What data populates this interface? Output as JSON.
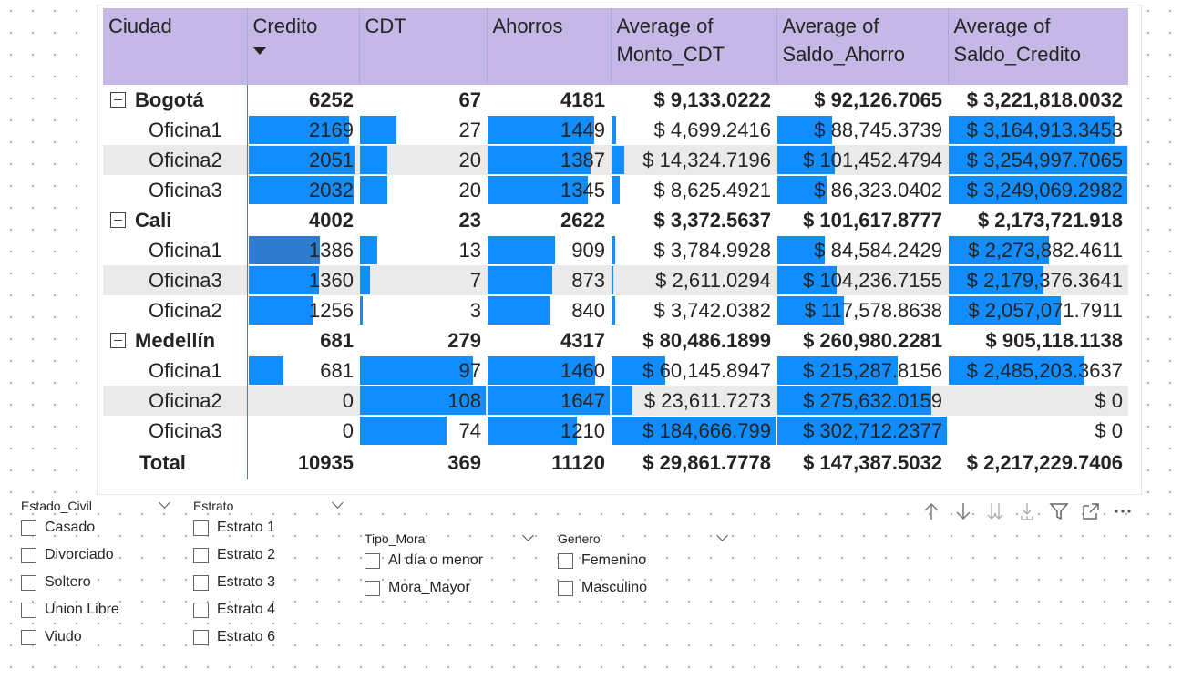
{
  "matrix": {
    "headers": {
      "ciudad": "Ciudad",
      "credito": "Credito",
      "cdt": "CDT",
      "ahorros": "Ahorros",
      "monto_cdt": "Average of Monto_CDT",
      "saldo_ahorro": "Average of Saldo_Ahorro",
      "saldo_credito": "Average of Saldo_Credito"
    },
    "sort_column": "Credito",
    "bar_color": "#118dff",
    "header_color": "#c5b8e6",
    "groups": [
      {
        "city": "Bogotá",
        "credito": "6252",
        "cdt": "67",
        "ahorros": "4181",
        "monto_cdt": "$ 9,133.0222",
        "saldo_ahorro": "$ 92,126.7065",
        "saldo_credito": "$ 3,221,818.0032",
        "offices": [
          {
            "name": "Oficina1",
            "credito": "2169",
            "cdt": "27",
            "ahorros": "1449",
            "monto_cdt": "$ 4,699.2416",
            "saldo_ahorro": "$ 88,745.3739",
            "saldo_credito": "$ 3,164,913.3453",
            "levels": {
              "credito": 0.92,
              "cdt": 0.29,
              "ahorros": 0.87,
              "monto_cdt": 0.03,
              "saldo_ahorro": 0.32,
              "saldo_credito": 0.93
            }
          },
          {
            "name": "Oficina2",
            "credito": "2051",
            "cdt": "20",
            "ahorros": "1387",
            "monto_cdt": "$ 14,324.7196",
            "saldo_ahorro": "$ 101,452.4794",
            "saldo_credito": "$ 3,254,997.7065",
            "levels": {
              "credito": 0.97,
              "cdt": 0.22,
              "ahorros": 0.84,
              "monto_cdt": 0.08,
              "saldo_ahorro": 0.34,
              "saldo_credito": 1.0
            }
          },
          {
            "name": "Oficina3",
            "credito": "2032",
            "cdt": "20",
            "ahorros": "1345",
            "monto_cdt": "$ 8,625.4921",
            "saldo_ahorro": "$ 86,323.0402",
            "saldo_credito": "$ 3,249,069.2982",
            "levels": {
              "credito": 0.96,
              "cdt": 0.22,
              "ahorros": 0.82,
              "monto_cdt": 0.05,
              "saldo_ahorro": 0.29,
              "saldo_credito": 1.0
            }
          }
        ]
      },
      {
        "city": "Cali",
        "credito": "4002",
        "cdt": "23",
        "ahorros": "2622",
        "monto_cdt": "$ 3,372.5637",
        "saldo_ahorro": "$ 101,617.8777",
        "saldo_credito": "$ 2,173,721.918",
        "offices": [
          {
            "name": "Oficina1",
            "credito": "1386",
            "cdt": "13",
            "ahorros": "909",
            "monto_cdt": "$ 3,784.9928",
            "saldo_ahorro": "$ 84,584.2429",
            "saldo_credito": "$ 2,273,882.4611",
            "selected": true,
            "levels": {
              "credito": 0.65,
              "cdt": 0.14,
              "ahorros": 0.55,
              "monto_cdt": 0.02,
              "saldo_ahorro": 0.28,
              "saldo_credito": 0.56
            }
          },
          {
            "name": "Oficina3",
            "credito": "1360",
            "cdt": "7",
            "ahorros": "873",
            "monto_cdt": "$ 2,611.0294",
            "saldo_ahorro": "$ 104,236.7155",
            "saldo_credito": "$ 2,179,376.3641",
            "levels": {
              "credito": 0.64,
              "cdt": 0.08,
              "ahorros": 0.53,
              "monto_cdt": 0.01,
              "saldo_ahorro": 0.35,
              "saldo_credito": 0.53
            }
          },
          {
            "name": "Oficina2",
            "credito": "1256",
            "cdt": "3",
            "ahorros": "840",
            "monto_cdt": "$ 3,742.0382",
            "saldo_ahorro": "$ 117,578.8638",
            "saldo_credito": "$ 2,057,071.7911",
            "levels": {
              "credito": 0.59,
              "cdt": 0.02,
              "ahorros": 0.51,
              "monto_cdt": 0.02,
              "saldo_ahorro": 0.39,
              "saldo_credito": 0.63
            }
          }
        ]
      },
      {
        "city": "Medellín",
        "credito": "681",
        "cdt": "279",
        "ahorros": "4317",
        "monto_cdt": "$ 80,486.1899",
        "saldo_ahorro": "$ 260,980.2281",
        "saldo_credito": "$ 905,118.1138",
        "offices": [
          {
            "name": "Oficina1",
            "credito": "681",
            "cdt": "97",
            "ahorros": "1460",
            "monto_cdt": "$ 60,145.8947",
            "saldo_ahorro": "$ 215,287.8156",
            "saldo_credito": "$ 2,485,203.3637",
            "levels": {
              "credito": 0.32,
              "cdt": 0.9,
              "ahorros": 0.88,
              "monto_cdt": 0.33,
              "saldo_ahorro": 0.71,
              "saldo_credito": 0.76
            }
          },
          {
            "name": "Oficina2",
            "credito": "0",
            "cdt": "108",
            "ahorros": "1647",
            "monto_cdt": "$ 23,611.7273",
            "saldo_ahorro": "$ 275,632.0159",
            "saldo_credito": "$ 0",
            "levels": {
              "credito": 0,
              "cdt": 1.0,
              "ahorros": 1.0,
              "monto_cdt": 0.13,
              "saldo_ahorro": 0.91,
              "saldo_credito": 0
            }
          },
          {
            "name": "Oficina3",
            "credito": "0",
            "cdt": "74",
            "ahorros": "1210",
            "monto_cdt": "$ 184,666.799",
            "saldo_ahorro": "$ 302,712.2377",
            "saldo_credito": "$ 0",
            "levels": {
              "credito": 0,
              "cdt": 0.69,
              "ahorros": 0.73,
              "monto_cdt": 1.0,
              "saldo_ahorro": 1.0,
              "saldo_credito": 0
            }
          }
        ]
      }
    ],
    "total": {
      "label": "Total",
      "credito": "10935",
      "cdt": "369",
      "ahorros": "11120",
      "monto_cdt": "$ 29,861.7778",
      "saldo_ahorro": "$ 147,387.5032",
      "saldo_credito": "$ 2,217,229.7406"
    }
  },
  "slicers": [
    {
      "title": "Estado_Civil",
      "items": [
        "Casado",
        "Divorciado",
        "Soltero",
        "Union Libre",
        "Viudo"
      ]
    },
    {
      "title": "Estrato",
      "items": [
        "Estrato 1",
        "Estrato 2",
        "Estrato 3",
        "Estrato 4",
        "Estrato 6"
      ]
    },
    {
      "title": "Tipo_Mora",
      "items": [
        "Al día o menor",
        "Mora_Mayor"
      ]
    },
    {
      "title": "Genero",
      "items": [
        "Femenino",
        "Masculino"
      ]
    }
  ],
  "toolbar": {
    "icons": [
      "sort-up-icon",
      "sort-down-icon",
      "drill-down-icon",
      "expand-hierarchy-icon",
      "filter-icon",
      "focus-mode-icon",
      "more-options-icon"
    ]
  }
}
